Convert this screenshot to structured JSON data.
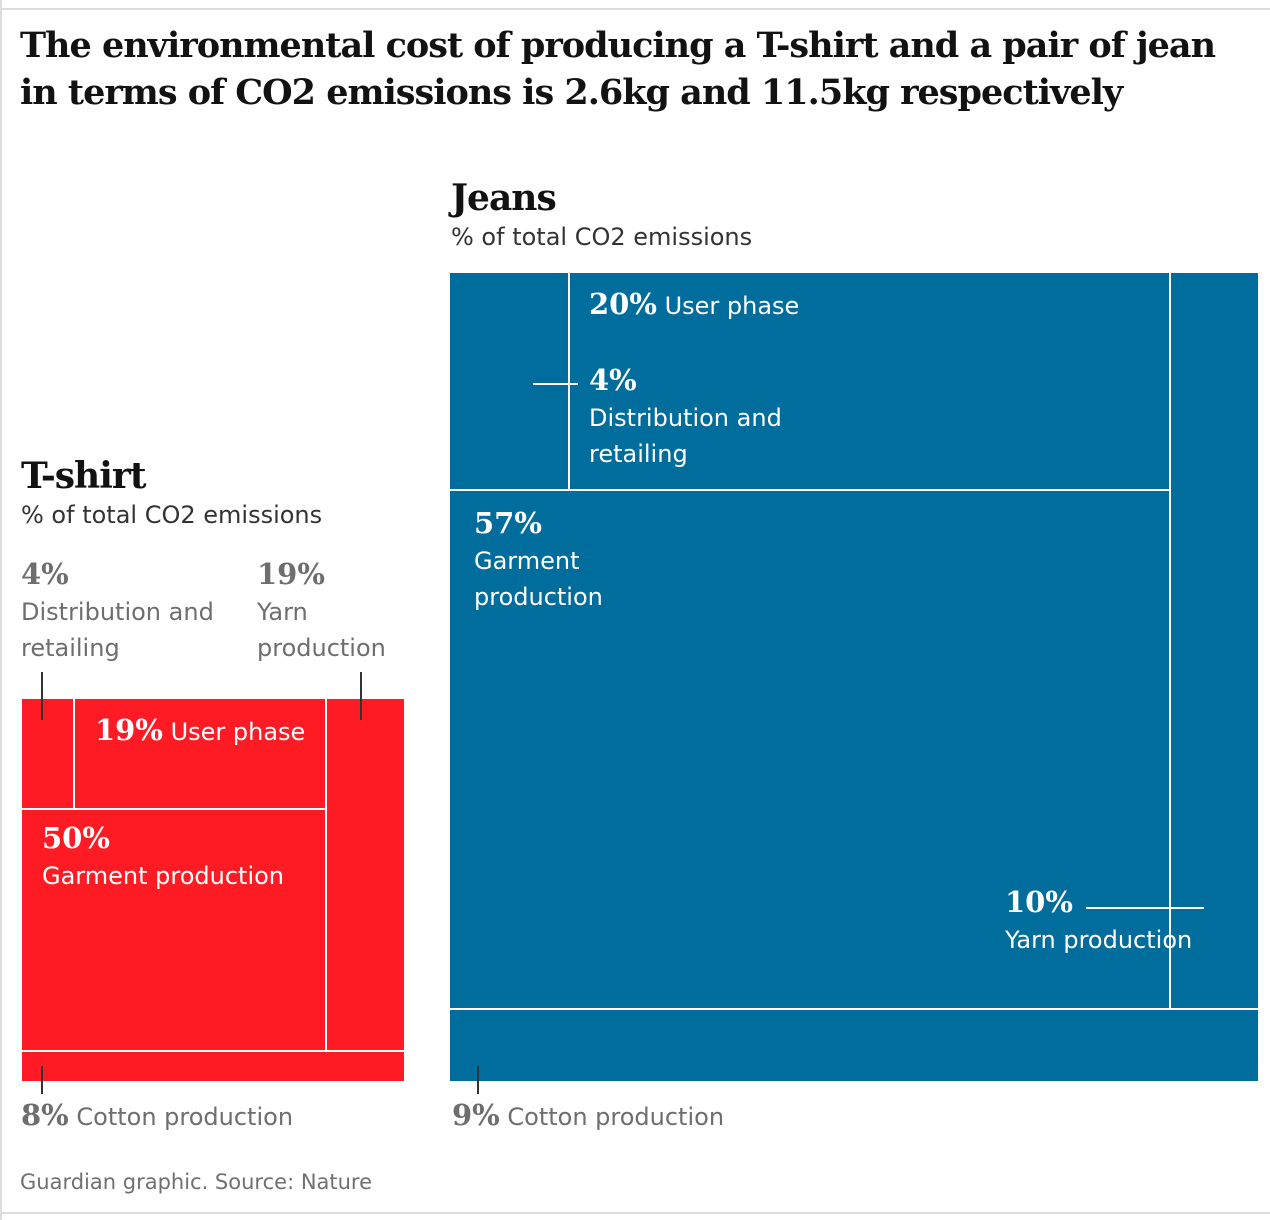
{
  "title": "The environmental cost of producing a T-shirt and a pair of jean in terms of CO2 emissions is 2.6kg and 11.5kg respectively",
  "source": "Guardian graphic. Source: Nature",
  "chart_data": [
    {
      "type": "treemap",
      "title": "T-shirt",
      "subtitle": "% of total CO2 emissions",
      "color": "#ff1b24",
      "categories": [
        "Distribution and retailing",
        "User phase",
        "Garment production",
        "Yarn production",
        "Cotton production"
      ],
      "values": [
        4,
        19,
        50,
        19,
        8
      ],
      "value_labels": [
        "4%",
        "19%",
        "50%",
        "19%",
        "8%"
      ]
    },
    {
      "type": "treemap",
      "title": "Jeans",
      "subtitle": "% of total CO2 emissions",
      "color": "#006d9c",
      "categories": [
        "Distribution and retailing",
        "User phase",
        "Garment production",
        "Yarn production",
        "Cotton production"
      ],
      "values": [
        4,
        20,
        57,
        10,
        9
      ],
      "value_labels": [
        "4%",
        "20%",
        "57%",
        "10%",
        "9%"
      ]
    }
  ]
}
